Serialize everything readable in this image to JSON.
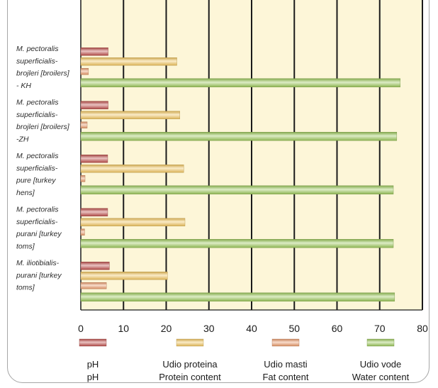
{
  "chart_data": {
    "type": "bar",
    "orientation": "horizontal",
    "categories": [
      [
        "M. pectoralis",
        "superficialis-",
        "brojleri [broilers]",
        "- KH"
      ],
      [
        "M. pectoralis",
        "superficialis-",
        "brojleri [broilers]",
        "-ZH"
      ],
      [
        "M. pectoralis",
        "superficialis-",
        "pure [turkey",
        "hens]"
      ],
      [
        "M. pectoralis",
        "superficialis-",
        "purani [turkey",
        "toms]"
      ],
      [
        "M. iliotibialis-",
        "purani [turkey",
        "toms]"
      ]
    ],
    "series": [
      {
        "name_lines": [
          "pH",
          "pH"
        ],
        "color": "#c0504d",
        "values": [
          6.4,
          6.4,
          6.3,
          6.3,
          6.7
        ]
      },
      {
        "name_lines": [
          "Udio proteina",
          "Protein content"
        ],
        "color": "#f2c65f",
        "values": [
          22.5,
          23.2,
          24.1,
          24.4,
          20.3
        ]
      },
      {
        "name_lines": [
          "Udio masti",
          "Fat content"
        ],
        "color": "#ea9a6b",
        "values": [
          1.8,
          1.5,
          1.0,
          0.9,
          6.0
        ]
      },
      {
        "name_lines": [
          "Udio vode",
          "Water content"
        ],
        "color": "#9bc85a",
        "values": [
          74.8,
          74.0,
          73.2,
          73.2,
          73.5
        ]
      }
    ],
    "x_ticks": [
      "0",
      "10",
      "20",
      "30",
      "40",
      "50",
      "60",
      "70",
      "80"
    ],
    "xlim": [
      0,
      80
    ],
    "grid": true,
    "legend_position": "bottom"
  }
}
